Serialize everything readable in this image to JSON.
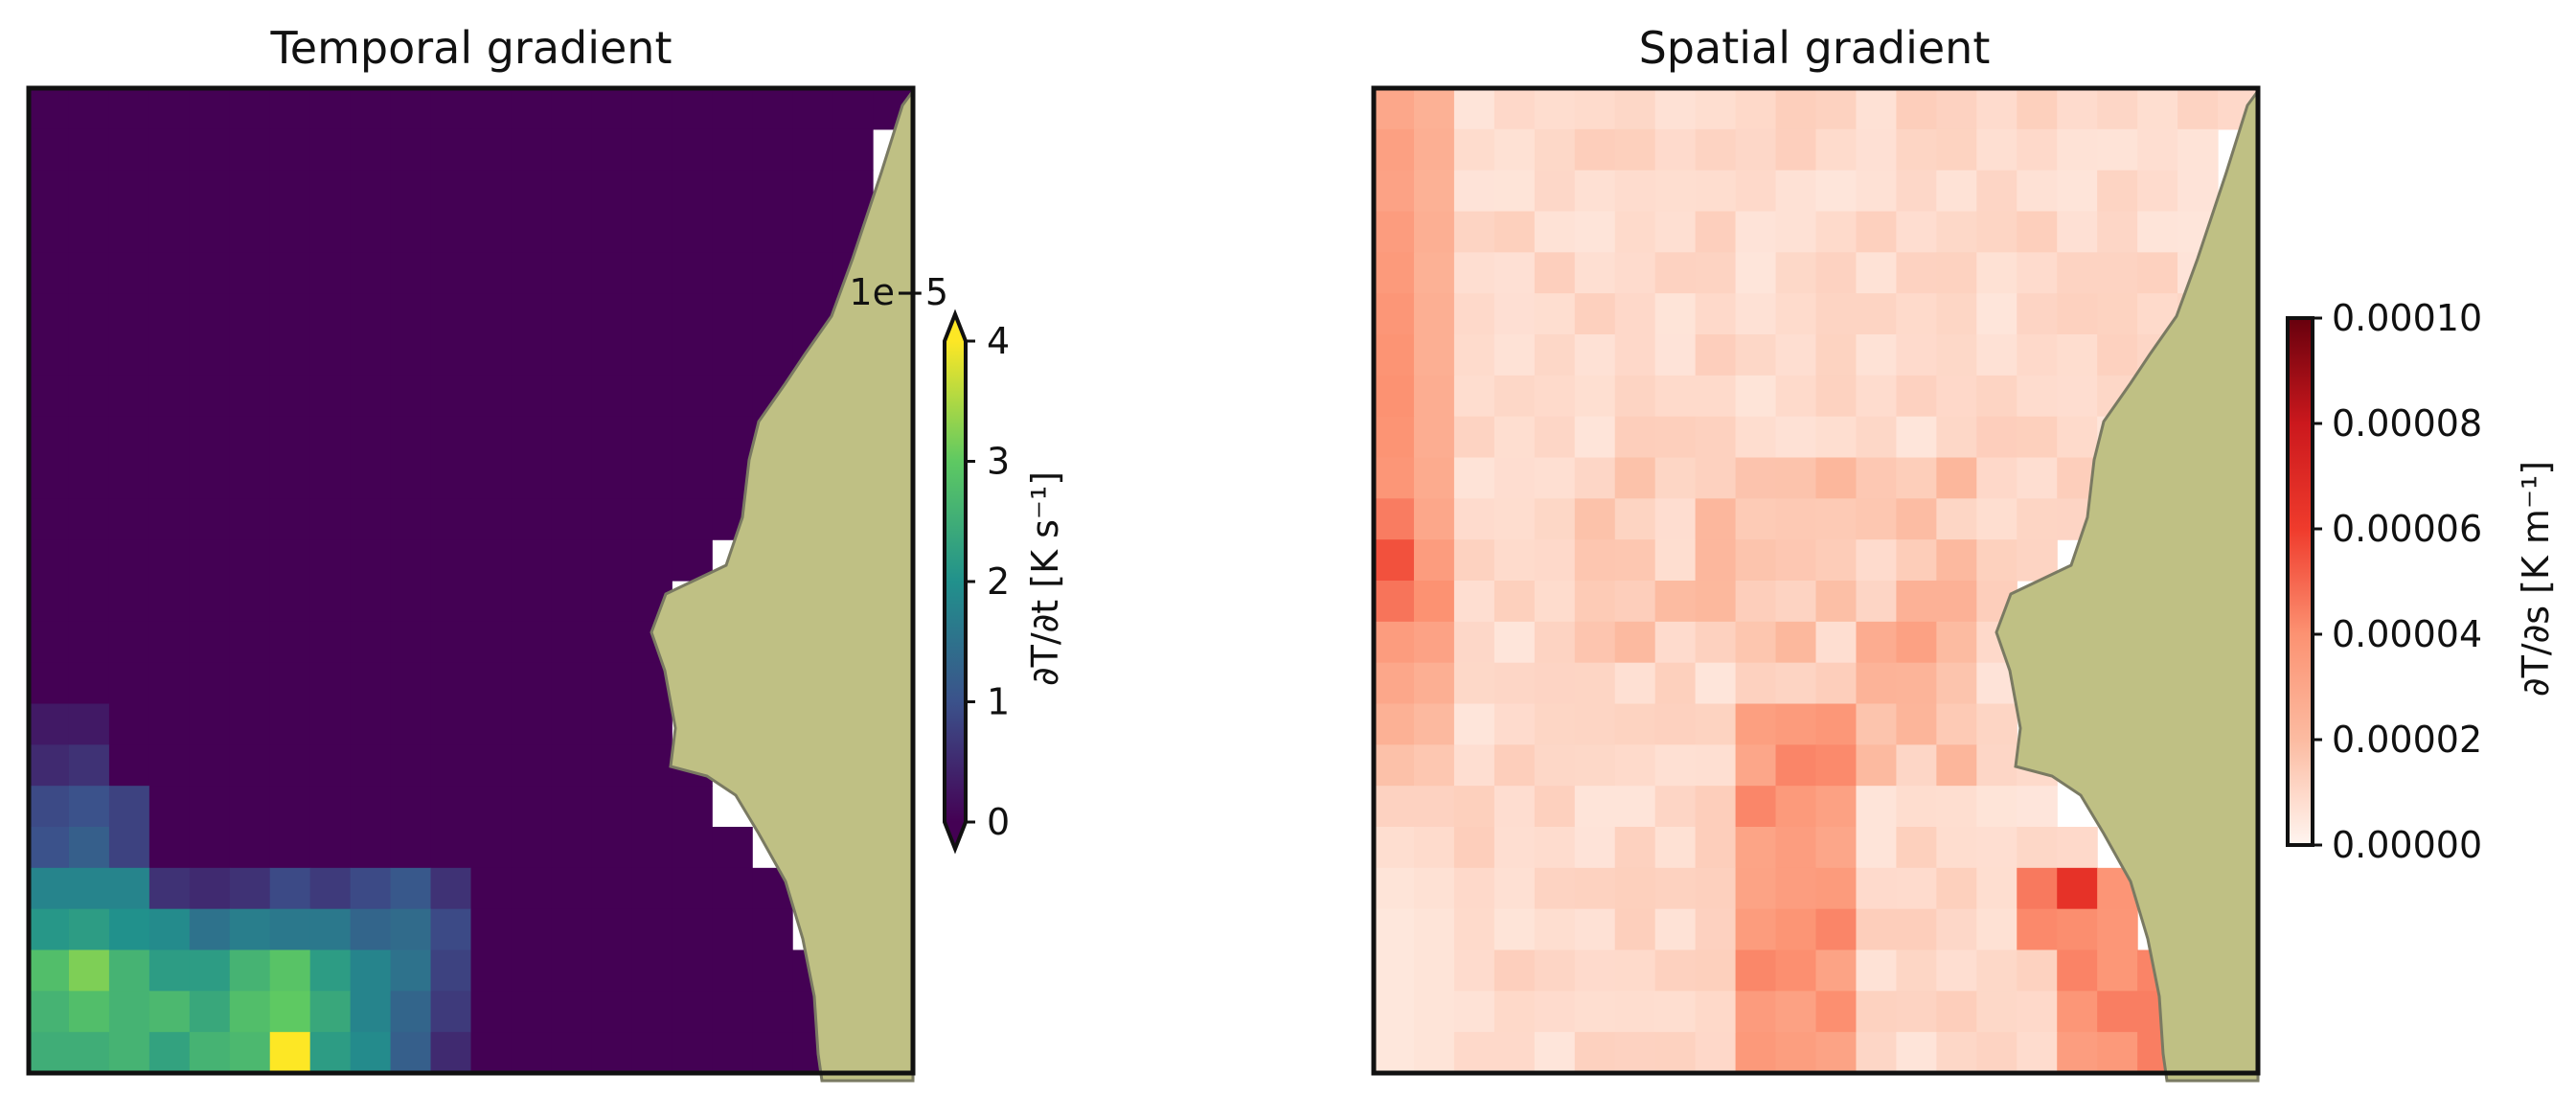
{
  "chart_data": [
    {
      "type": "heatmap",
      "title": "Temporal gradient",
      "colormap": "viridis",
      "grid": false,
      "colorbar": {
        "label": "∂T/∂t [K s⁻¹]",
        "ticks": [
          "0",
          "1",
          "2",
          "3",
          "4"
        ],
        "multiplier": "1e−5",
        "range": [
          0,
          4
        ],
        "extend": "both",
        "placement": "right"
      },
      "land_color": "#bfc084",
      "grid_shape": [
        24,
        22
      ],
      "background_value": 0,
      "hotspot": {
        "rows": [
          {
            "row": 15,
            "values": [
              0.3,
              0.3
            ]
          },
          {
            "row": 16,
            "values": [
              0.5,
              0.6
            ]
          },
          {
            "row": 17,
            "values": [
              0.9,
              1.0,
              0.8
            ]
          },
          {
            "row": 18,
            "values": [
              1.0,
              1.2,
              0.8
            ]
          },
          {
            "row": 19,
            "values": [
              1.8,
              1.8,
              1.8,
              0.6,
              0.5,
              0.6,
              0.9,
              0.7,
              0.9,
              1.1,
              0.6
            ]
          },
          {
            "row": 20,
            "values": [
              2.1,
              2.2,
              2.0,
              1.9,
              1.5,
              1.7,
              1.6,
              1.6,
              1.3,
              1.4,
              0.9
            ]
          },
          {
            "row": 21,
            "values": [
              2.8,
              3.2,
              2.6,
              2.2,
              2.2,
              2.6,
              2.9,
              2.2,
              1.8,
              1.5,
              0.8
            ]
          },
          {
            "row": 22,
            "values": [
              2.6,
              2.8,
              2.6,
              2.7,
              2.4,
              2.8,
              3.0,
              2.4,
              1.8,
              1.3,
              0.7
            ]
          },
          {
            "row": 23,
            "values": [
              2.5,
              2.5,
              2.6,
              2.3,
              2.6,
              2.7,
              4.0,
              2.2,
              1.9,
              1.2,
              0.5
            ]
          }
        ]
      }
    },
    {
      "type": "heatmap",
      "title": "Spatial gradient",
      "colormap": "Reds",
      "grid": false,
      "colorbar": {
        "label": "∂T/∂s [K m⁻¹]",
        "ticks": [
          "0.00000",
          "0.00002",
          "0.00004",
          "0.00006",
          "0.00008",
          "0.00010"
        ],
        "range": [
          0,
          0.0001
        ],
        "placement": "right"
      },
      "land_color": "#bfc084",
      "grid_shape": [
        24,
        22
      ],
      "first_column_values": [
        3.0,
        3.3,
        3.2,
        3.5,
        3.6,
        3.8,
        3.9,
        4.0,
        3.9,
        3.8,
        4.5,
        5.5,
        4.7,
        3.5,
        3.0,
        2.5,
        1.8,
        1.2,
        0.8,
        0.6,
        0.5,
        0.5,
        0.5,
        0.5
      ],
      "second_column_values": [
        2.5,
        2.6,
        2.5,
        2.6,
        2.5,
        2.6,
        2.6,
        2.7,
        2.7,
        2.8,
        3.0,
        3.5,
        4.0,
        3.2,
        2.6,
        2.1,
        1.6,
        1.2,
        0.9,
        0.7,
        0.6,
        0.6,
        0.6,
        0.6
      ],
      "typical_interior_value": 0.9,
      "peak_value": 6.5,
      "units_note_multiplier": "1e-5"
    }
  ]
}
